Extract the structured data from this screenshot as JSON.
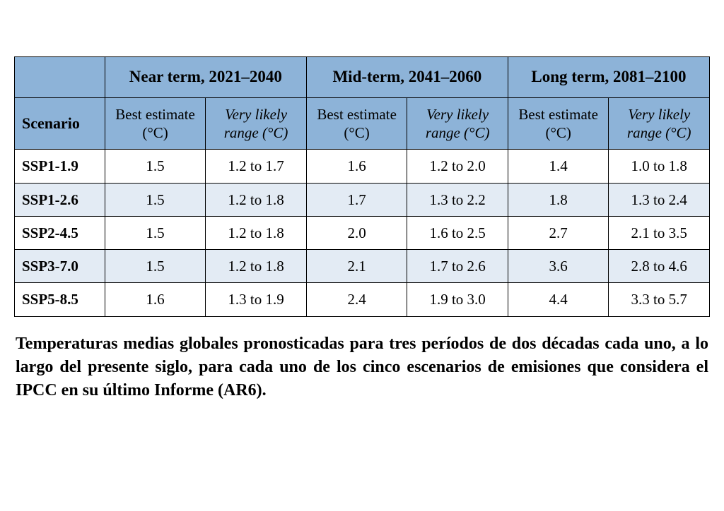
{
  "table": {
    "type": "table",
    "colors": {
      "header_bg": "#8db3d8",
      "row_alt_a_bg": "#ffffff",
      "row_alt_b_bg": "#e3ebf4",
      "border": "#000000",
      "text": "#000000",
      "page_bg": "#ffffff"
    },
    "typography": {
      "font_family": "Times New Roman",
      "period_header_fontsize_pt": 17,
      "period_header_fontweight": "bold",
      "subheader_fontsize_pt": 16,
      "subheader_range_style": "italic",
      "cell_fontsize_pt": 16,
      "scenario_fontweight": "bold"
    },
    "column_widths_percent": [
      13,
      14.5,
      14.5,
      14.5,
      14.5,
      14.5,
      14.5
    ],
    "scenario_header": "Scenario",
    "periods": [
      {
        "label": "Near term, 2021–2040"
      },
      {
        "label": "Mid-term, 2041–2060"
      },
      {
        "label": "Long term, 2081–2100"
      }
    ],
    "subheaders": {
      "best": "Best estimate (°C)",
      "range": "Very likely range (°C)"
    },
    "rows": [
      {
        "scenario": "SSP1-1.9",
        "near_best": "1.5",
        "near_range": "1.2 to 1.7",
        "mid_best": "1.6",
        "mid_range": "1.2 to 2.0",
        "long_best": "1.4",
        "long_range": "1.0 to 1.8"
      },
      {
        "scenario": "SSP1-2.6",
        "near_best": "1.5",
        "near_range": "1.2 to 1.8",
        "mid_best": "1.7",
        "mid_range": "1.3 to 2.2",
        "long_best": "1.8",
        "long_range": "1.3 to 2.4"
      },
      {
        "scenario": "SSP2-4.5",
        "near_best": "1.5",
        "near_range": "1.2 to 1.8",
        "mid_best": "2.0",
        "mid_range": "1.6 to 2.5",
        "long_best": "2.7",
        "long_range": "2.1 to 3.5"
      },
      {
        "scenario": "SSP3-7.0",
        "near_best": "1.5",
        "near_range": "1.2 to 1.8",
        "mid_best": "2.1",
        "mid_range": "1.7 to 2.6",
        "long_best": "3.6",
        "long_range": "2.8 to 4.6"
      },
      {
        "scenario": "SSP5-8.5",
        "near_best": "1.6",
        "near_range": "1.3 to 1.9",
        "mid_best": "2.4",
        "mid_range": "1.9 to 3.0",
        "long_best": "4.4",
        "long_range": "3.3 to 5.7"
      }
    ]
  },
  "caption": "Temperaturas medias globales pronosticadas para tres períodos de dos décadas cada uno, a lo largo del presente siglo, para cada uno de los cinco escenarios de emisiones que considera el IPCC en su último Informe (AR6).",
  "caption_style": {
    "fontsize_pt": 18,
    "fontweight": "bold",
    "align": "justify",
    "color": "#000000"
  }
}
